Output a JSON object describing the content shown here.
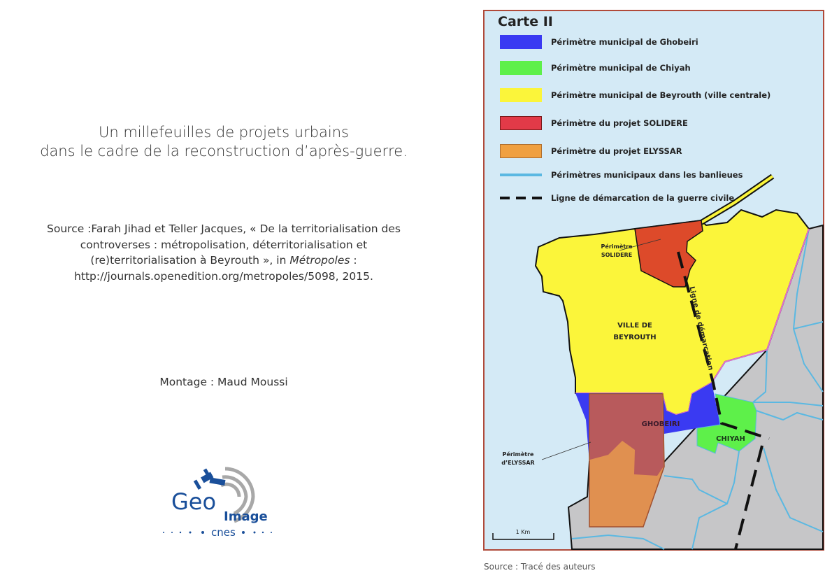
{
  "slide": {
    "title_lines": [
      "Un millefeuilles de projets urbains",
      "dans le cadre de la reconstruction d’après-guerre."
    ],
    "source_lines": [
      "Source :Farah Jihad et Teller Jacques, « De la territorialisation des",
      "controverses : métropolisation, déterritorialisation et",
      "(re)territorialisation à Beyrouth », in ",
      "Métropoles",
      " :",
      "http://journals.openedition.org/metropoles/5098, 2015."
    ],
    "montage": "Montage : Maud Moussi",
    "logo": {
      "line1": "Geo",
      "line2": "Image",
      "line3": "cnes"
    }
  },
  "map": {
    "title": "Carte II",
    "colors": {
      "sea": "#d4eaf6",
      "frame": "#b04a3a",
      "ghobeiri": "#3a3af2",
      "chiyah": "#5ef04a",
      "beyrouth": "#fbf53a",
      "solidere": "#dd4a2a",
      "elyssar": "#e09050",
      "elyssar_overlap": "#b85a5c",
      "suburbs": "#5ab8e2",
      "land": "#c6c6c8"
    },
    "legend": [
      {
        "label": "Périmètre municipal de Ghobeiri",
        "swatch": "#3a3af2",
        "kind": "box"
      },
      {
        "label": "Périmètre municipal de Chiyah",
        "swatch": "#5ef04a",
        "kind": "box"
      },
      {
        "label": "Périmètre municipal de Beyrouth (ville centrale)",
        "swatch": "#fbf53a",
        "kind": "box"
      },
      {
        "label": "Périmètre du projet SOLIDERE",
        "swatch": "#e23a48",
        "kind": "box"
      },
      {
        "label": "Périmètre du projet ELYSSAR",
        "swatch": "#f0a040",
        "kind": "box"
      },
      {
        "label": "Périmètres municipaux dans les banlieues",
        "swatch": "#5ab8e2",
        "kind": "line"
      },
      {
        "label": "Ligne de démarcation de la guerre civile",
        "swatch": "#111111",
        "kind": "dash"
      }
    ],
    "labels": {
      "solidere_1": "Périmètre",
      "solidere_2": "SOLIDERE",
      "ville_1": "VILLE DE",
      "ville_2": "BEYROUTH",
      "demarcation": "Ligne de démarcation",
      "ghobeiri": "GHOBEIRI",
      "chiyah": "CHIYAH",
      "elyssar_1": "Périmètre",
      "elyssar_2": "d’ELYSSAR"
    },
    "scale": "1 Km",
    "source": "Source : Tracé des auteurs"
  }
}
